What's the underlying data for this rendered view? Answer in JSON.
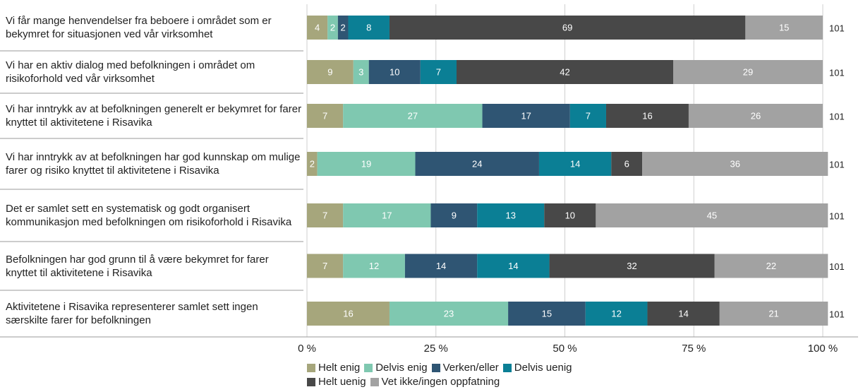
{
  "chart_data": {
    "type": "stacked-bar-horizontal",
    "categories": [
      "Vi får mange henvendelser fra beboere i området som er bekymret for situasjonen ved vår virksomhet",
      "Vi har en aktiv dialog med befolkningen i området om risikoforhold ved vår virksomhet",
      "Vi har inntrykk av at befolkningen generelt er bekymret for farer knyttet til aktivitetene i Risavika",
      "Vi har inntrykk av at befolkningen har god kunnskap om mulige farer og risiko knyttet til aktivitetene i Risavika",
      "Det er samlet sett en systematisk og godt organisert kommunikasjon med befolkningen om risikoforhold i Risavika",
      "Befolkningen har god grunn til å være bekymret for farer knyttet til aktivitetene i Risavika",
      "Aktivitetene i Risavika representerer samlet sett ingen særskilte farer for befolkningen"
    ],
    "series": [
      {
        "name": "Helt enig",
        "color": "#a6a67c",
        "values": [
          4,
          9,
          7,
          2,
          7,
          7,
          16
        ]
      },
      {
        "name": "Delvis enig",
        "color": "#7fc8b0",
        "values": [
          2,
          3,
          27,
          19,
          17,
          12,
          23
        ]
      },
      {
        "name": "Verken/eller",
        "color": "#2f5573",
        "values": [
          2,
          10,
          17,
          24,
          9,
          14,
          15
        ]
      },
      {
        "name": "Delvis uenig",
        "color": "#0b7f95",
        "values": [
          8,
          7,
          7,
          14,
          13,
          14,
          12
        ]
      },
      {
        "name": "Helt uenig",
        "color": "#484848",
        "values": [
          69,
          42,
          16,
          6,
          10,
          32,
          14
        ]
      },
      {
        "name": "Vet ikke/ingen oppfatning",
        "color": "#a2a2a2",
        "values": [
          15,
          29,
          26,
          36,
          45,
          22,
          21
        ]
      }
    ],
    "totals": [
      101,
      101,
      101,
      101,
      101,
      101,
      101
    ],
    "xlim": [
      0,
      100
    ],
    "xticks": [
      {
        "value": 0,
        "label": "0 %"
      },
      {
        "value": 25,
        "label": "25 %"
      },
      {
        "value": 50,
        "label": "50 %"
      },
      {
        "value": 75,
        "label": "75 %"
      },
      {
        "value": 100,
        "label": "100 %"
      }
    ],
    "grid": true
  }
}
